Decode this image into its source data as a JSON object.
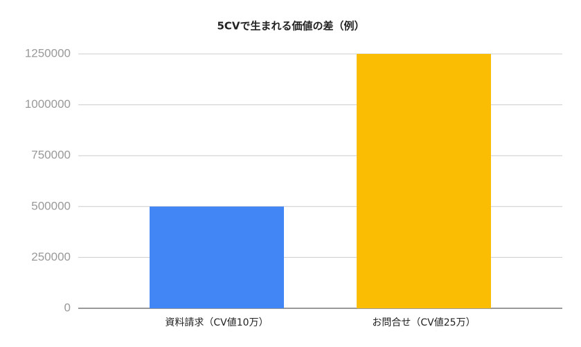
{
  "chart_data": {
    "type": "bar",
    "title": "5CVで生まれる価値の差（例）",
    "categories": [
      "資料請求（CV値10万）",
      "お問合せ（CV値25万）"
    ],
    "values": [
      500000,
      1250000
    ],
    "colors": [
      "#4285f4",
      "#fbbc04"
    ],
    "ylim": [
      0,
      1250000
    ],
    "yticks": [
      0,
      250000,
      500000,
      750000,
      1000000,
      1250000
    ],
    "grid": true
  }
}
